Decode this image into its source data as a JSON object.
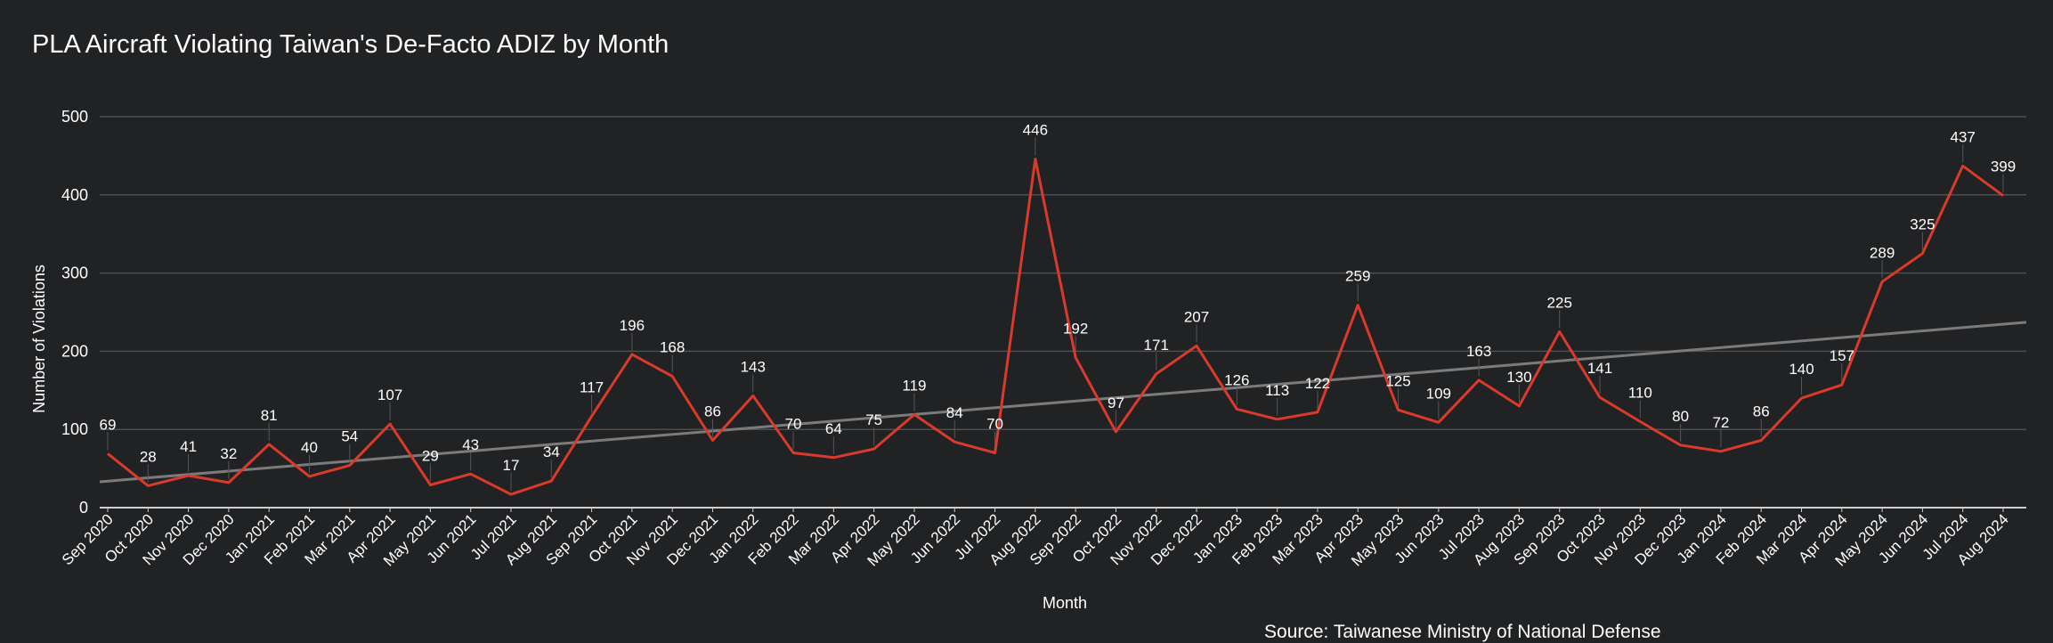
{
  "chart_data": {
    "type": "line",
    "title": "PLA Aircraft Violating Taiwan's De-Facto ADIZ by Month",
    "xlabel": "Month",
    "ylabel": "Number of Violations",
    "source": "Source: Taiwanese Ministry of National Defense",
    "ylim": [
      0,
      500
    ],
    "yticks": [
      0,
      100,
      200,
      300,
      400,
      500
    ],
    "grid": true,
    "legend": "none",
    "categories": [
      "Sep 2020",
      "Oct 2020",
      "Nov 2020",
      "Dec 2020",
      "Jan 2021",
      "Feb 2021",
      "Mar 2021",
      "Apr 2021",
      "May 2021",
      "Jun 2021",
      "Jul 2021",
      "Aug 2021",
      "Sep 2021",
      "Oct 2021",
      "Nov 2021",
      "Dec 2021",
      "Jan 2022",
      "Feb 2022",
      "Mar 2022",
      "Apr 2022",
      "May 2022",
      "Jun 2022",
      "Jul 2022",
      "Aug 2022",
      "Sep 2022",
      "Oct 2022",
      "Nov 2022",
      "Dec 2022",
      "Jan 2023",
      "Feb 2023",
      "Mar 2023",
      "Apr 2023",
      "May 2023",
      "Jun 2023",
      "Jul 2023",
      "Aug 2023",
      "Sep 2023",
      "Oct 2023",
      "Nov 2023",
      "Dec 2023",
      "Jan 2024",
      "Feb 2024",
      "Mar 2024",
      "Apr 2024",
      "May 2024",
      "Jun 2024",
      "Jul 2024",
      "Aug 2024"
    ],
    "series": [
      {
        "values": [
          69,
          28,
          41,
          32,
          81,
          40,
          54,
          107,
          29,
          43,
          17,
          34,
          117,
          196,
          168,
          86,
          143,
          70,
          64,
          75,
          119,
          84,
          70,
          446,
          192,
          97,
          171,
          207,
          126,
          113,
          122,
          259,
          125,
          109,
          163,
          130,
          225,
          141,
          110,
          80,
          72,
          86,
          140,
          157,
          289,
          325,
          437,
          399
        ],
        "color": "#d93a2b"
      }
    ],
    "trendline": {
      "start": 33,
      "end": 237,
      "color": "#7b7b7b"
    },
    "colors": {
      "background": "#212224",
      "grid": "#4d4e50",
      "axis": "#cfcfcf",
      "text": "#ffffff"
    }
  }
}
